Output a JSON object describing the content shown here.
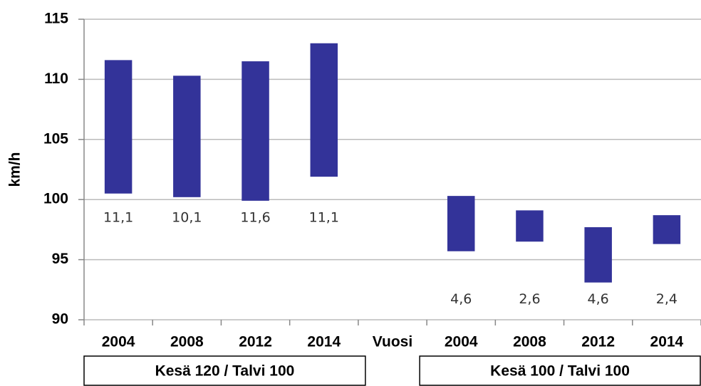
{
  "chart_data": {
    "type": "floating-bar",
    "y_label": "km/h",
    "categories": [
      "2004",
      "2008",
      "2012",
      "2014",
      "Vuosi",
      "2004",
      "2008",
      "2012",
      "2014"
    ],
    "groups": [
      "Kesä 120 / Talvi 100",
      "Kesä 100 / Talvi 100"
    ],
    "series": [
      {
        "values": [
          100.5,
          100.2,
          99.9,
          101.9,
          null,
          95.7,
          96.5,
          93.1,
          96.3
        ]
      },
      {
        "color": "#333399",
        "values": [
          11.1,
          10.1,
          11.6,
          11.1,
          null,
          4.6,
          2.6,
          4.6,
          2.4
        ],
        "value_labels": [
          "11,1",
          "10,1",
          "11,6",
          "11,1",
          null,
          "4,6",
          "2,6",
          "4,6",
          "2,4"
        ]
      }
    ],
    "ylim": [
      90,
      115
    ],
    "yticks": [
      90,
      95,
      100,
      105,
      110,
      115
    ],
    "grid": true
  }
}
